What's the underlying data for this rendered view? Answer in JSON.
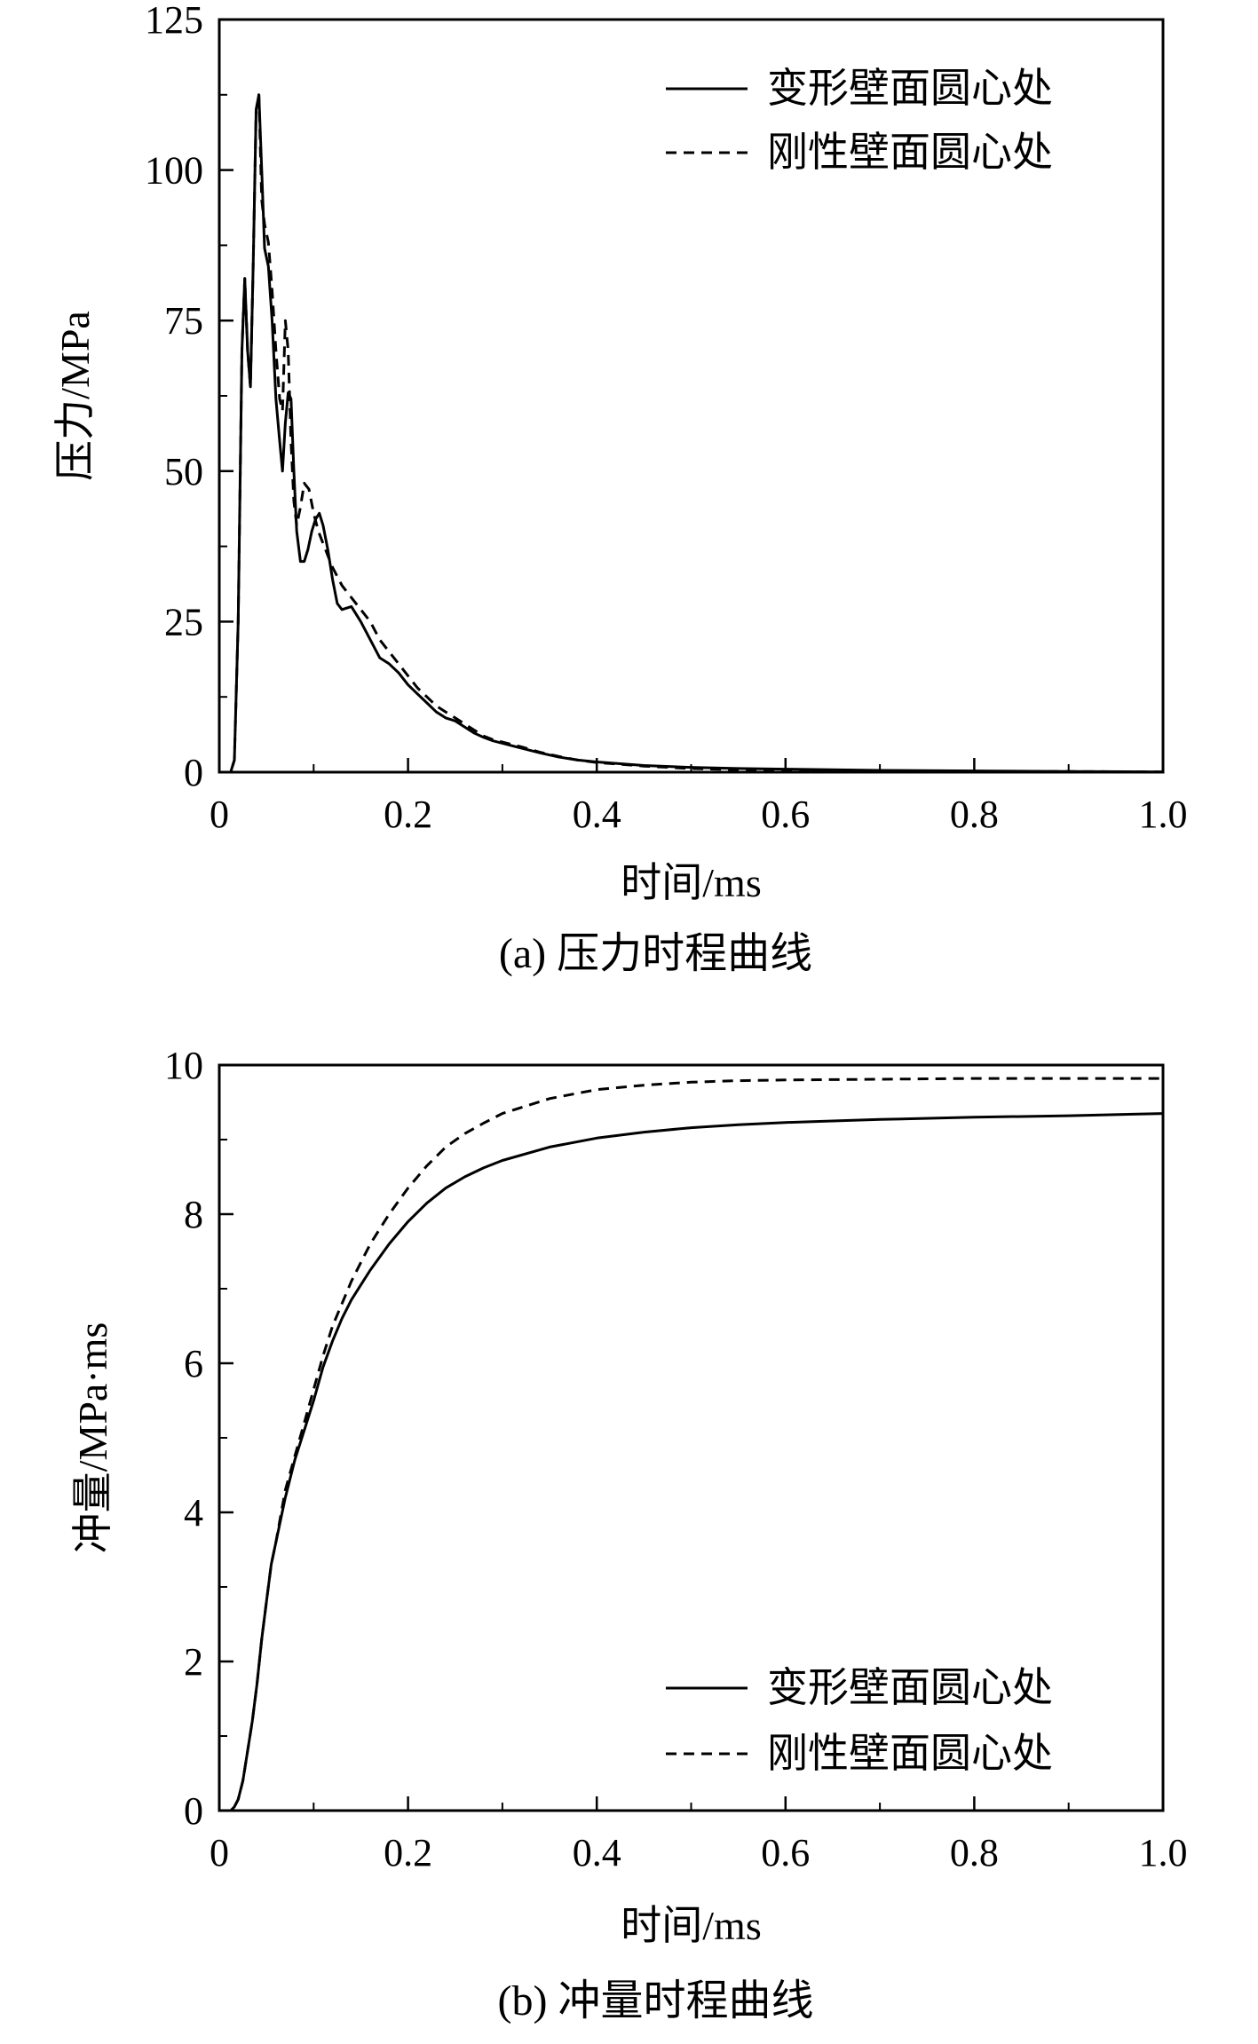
{
  "chart_data": [
    {
      "type": "line",
      "caption": "(a) 压力时程曲线",
      "xlabel": "时间/ms",
      "ylabel": "压力/MPa",
      "xlim": [
        0,
        1.0
      ],
      "ylim": [
        0,
        125
      ],
      "xticks": [
        0,
        0.2,
        0.4,
        0.6,
        0.8,
        1.0
      ],
      "xtick_labels": [
        "0",
        "0.2",
        "0.4",
        "0.6",
        "0.8",
        "1.0"
      ],
      "yticks": [
        0,
        25,
        50,
        75,
        100,
        125
      ],
      "ytick_labels": [
        "0",
        "25",
        "50",
        "75",
        "100",
        "125"
      ],
      "legend_position": "top-right",
      "series": [
        {
          "name": "变形壁面圆心处",
          "style": "solid",
          "x": [
            0,
            0.012,
            0.016,
            0.02,
            0.024,
            0.027,
            0.03,
            0.033,
            0.036,
            0.039,
            0.042,
            0.045,
            0.048,
            0.052,
            0.056,
            0.06,
            0.064,
            0.067,
            0.07,
            0.073,
            0.076,
            0.079,
            0.082,
            0.086,
            0.09,
            0.094,
            0.098,
            0.102,
            0.106,
            0.11,
            0.115,
            0.12,
            0.125,
            0.13,
            0.14,
            0.15,
            0.16,
            0.17,
            0.18,
            0.19,
            0.2,
            0.21,
            0.22,
            0.23,
            0.24,
            0.25,
            0.26,
            0.27,
            0.28,
            0.29,
            0.3,
            0.32,
            0.34,
            0.36,
            0.38,
            0.4,
            0.45,
            0.5,
            0.55,
            0.6,
            0.7,
            0.8,
            0.9,
            1.0
          ],
          "y": [
            0,
            0,
            2,
            25,
            70,
            82,
            70,
            64,
            85,
            110,
            112.5,
            100,
            87,
            84,
            75,
            62,
            55,
            50,
            58,
            63,
            62,
            50,
            40,
            35,
            35,
            37,
            40,
            42,
            43,
            41,
            37,
            32,
            28,
            27,
            27.5,
            25,
            22,
            19,
            18,
            16.5,
            14.5,
            13,
            11.5,
            10,
            9,
            8.5,
            7.5,
            6.5,
            5.8,
            5.2,
            4.8,
            4,
            3.2,
            2.5,
            2,
            1.7,
            1.1,
            0.8,
            0.6,
            0.5,
            0.3,
            0.2,
            0.1,
            0.05
          ]
        },
        {
          "name": "刚性壁面圆心处",
          "style": "dashed",
          "x": [
            0,
            0.012,
            0.016,
            0.02,
            0.024,
            0.027,
            0.03,
            0.033,
            0.036,
            0.039,
            0.042,
            0.045,
            0.048,
            0.052,
            0.056,
            0.06,
            0.064,
            0.067,
            0.07,
            0.073,
            0.076,
            0.079,
            0.082,
            0.086,
            0.09,
            0.095,
            0.1,
            0.105,
            0.11,
            0.115,
            0.12,
            0.13,
            0.14,
            0.15,
            0.16,
            0.17,
            0.18,
            0.19,
            0.2,
            0.21,
            0.22,
            0.23,
            0.24,
            0.25,
            0.26,
            0.27,
            0.28,
            0.29,
            0.3,
            0.32,
            0.34,
            0.36,
            0.38,
            0.4,
            0.45,
            0.5,
            0.55,
            0.6,
            0.7,
            0.8,
            0.9,
            1.0
          ],
          "y": [
            0,
            0,
            2,
            25,
            70,
            82,
            70,
            64,
            85,
            110,
            112.5,
            95,
            91,
            88,
            80,
            70,
            62,
            60,
            75,
            70,
            55,
            45,
            41,
            44,
            48,
            47,
            43,
            40,
            38,
            36,
            34,
            31,
            29,
            27,
            25,
            22,
            20,
            18,
            16,
            14,
            12.5,
            11,
            10,
            9,
            8,
            7,
            6,
            5.4,
            5,
            4.2,
            3.3,
            2.6,
            2,
            1.6,
            1,
            0.6,
            0.4,
            0.3,
            0.2,
            0.15,
            0.1,
            0.05
          ]
        }
      ]
    },
    {
      "type": "line",
      "caption": "(b) 冲量时程曲线",
      "xlabel": "时间/ms",
      "ylabel": "冲量/MPa·ms",
      "xlim": [
        0,
        1.0
      ],
      "ylim": [
        0,
        10
      ],
      "xticks": [
        0,
        0.2,
        0.4,
        0.6,
        0.8,
        1.0
      ],
      "xtick_labels": [
        "0",
        "0.2",
        "0.4",
        "0.6",
        "0.8",
        "1.0"
      ],
      "yticks": [
        0,
        2,
        4,
        6,
        8,
        10
      ],
      "ytick_labels": [
        "0",
        "2",
        "4",
        "6",
        "8",
        "10"
      ],
      "legend_position": "bottom-right",
      "series": [
        {
          "name": "变形壁面圆心处",
          "style": "solid",
          "x": [
            0,
            0.012,
            0.016,
            0.02,
            0.025,
            0.03,
            0.035,
            0.04,
            0.045,
            0.05,
            0.055,
            0.06,
            0.07,
            0.08,
            0.09,
            0.1,
            0.11,
            0.12,
            0.13,
            0.14,
            0.15,
            0.16,
            0.18,
            0.2,
            0.22,
            0.24,
            0.26,
            0.28,
            0.3,
            0.35,
            0.4,
            0.45,
            0.5,
            0.55,
            0.6,
            0.7,
            0.8,
            0.9,
            1.0
          ],
          "y": [
            0,
            0,
            0.05,
            0.15,
            0.4,
            0.8,
            1.2,
            1.7,
            2.3,
            2.8,
            3.3,
            3.6,
            4.2,
            4.7,
            5.1,
            5.5,
            5.95,
            6.3,
            6.6,
            6.85,
            7.05,
            7.25,
            7.6,
            7.9,
            8.15,
            8.35,
            8.5,
            8.62,
            8.72,
            8.9,
            9.02,
            9.1,
            9.16,
            9.2,
            9.23,
            9.27,
            9.3,
            9.32,
            9.35
          ]
        },
        {
          "name": "刚性壁面圆心处",
          "style": "dashed",
          "x": [
            0,
            0.012,
            0.016,
            0.02,
            0.025,
            0.03,
            0.035,
            0.04,
            0.045,
            0.05,
            0.055,
            0.06,
            0.07,
            0.08,
            0.09,
            0.1,
            0.11,
            0.12,
            0.13,
            0.14,
            0.15,
            0.16,
            0.18,
            0.2,
            0.22,
            0.24,
            0.26,
            0.28,
            0.3,
            0.35,
            0.4,
            0.45,
            0.5,
            0.55,
            0.6,
            0.7,
            0.8,
            0.9,
            1.0
          ],
          "y": [
            0,
            0,
            0.05,
            0.15,
            0.4,
            0.8,
            1.2,
            1.7,
            2.3,
            2.8,
            3.3,
            3.6,
            4.3,
            4.75,
            5.2,
            5.65,
            6.1,
            6.5,
            6.8,
            7.1,
            7.35,
            7.6,
            8.0,
            8.35,
            8.65,
            8.9,
            9.08,
            9.22,
            9.35,
            9.55,
            9.67,
            9.73,
            9.77,
            9.79,
            9.8,
            9.81,
            9.82,
            9.82,
            9.82
          ]
        }
      ]
    }
  ]
}
